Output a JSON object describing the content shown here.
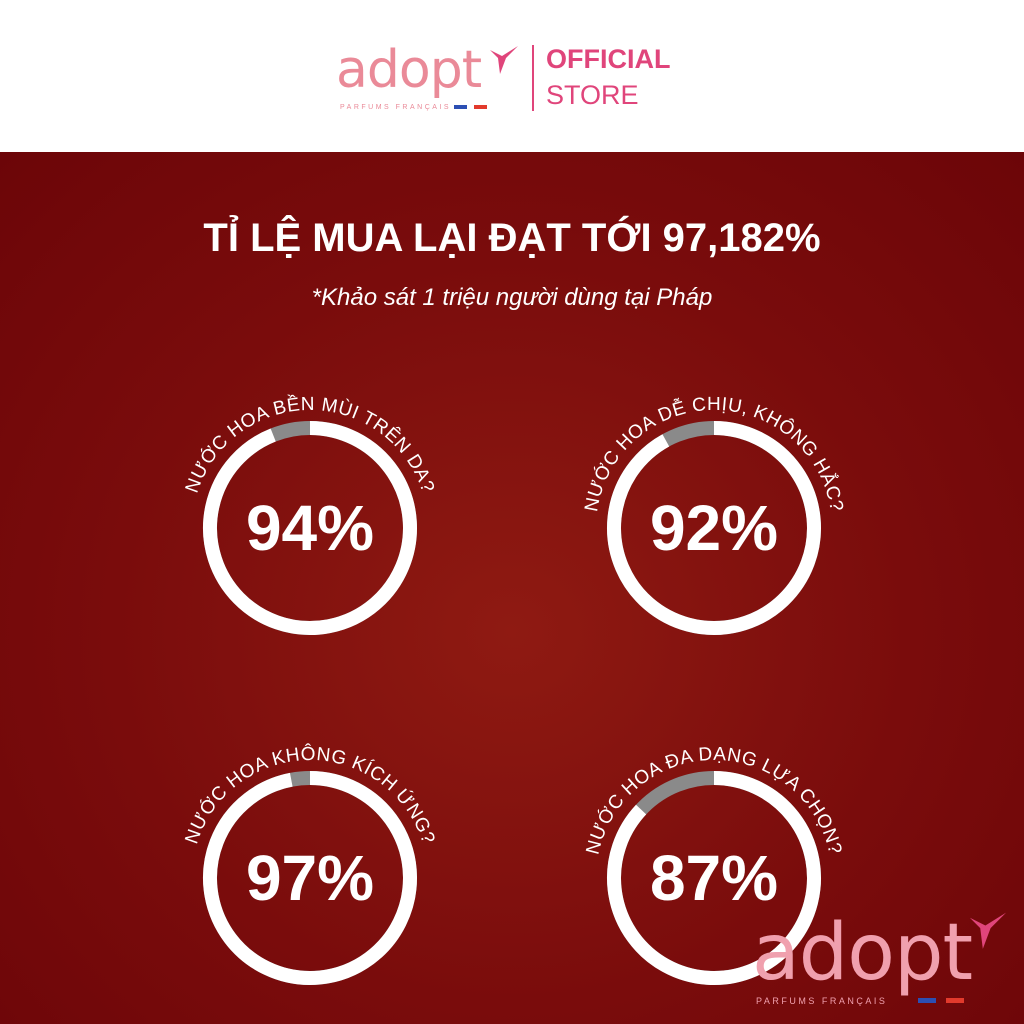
{
  "header": {
    "brand": "adopt",
    "brand_tagline": "PARFUMS FRANÇAIS",
    "official": "OFFICIAL",
    "store": "STORE"
  },
  "title": "TỈ LỆ MUA LẠI ĐẠT TỚI 97,182%",
  "subtitle": "*Khảo sát 1 triệu người dùng tại Pháp",
  "colors": {
    "ring": "#ffffff",
    "remainder": "#8a8a8a",
    "background": "#7a0c0c",
    "accent": "#e0457b"
  },
  "chart_data": {
    "type": "pie",
    "variant": "donut-gauge",
    "items": [
      {
        "label": "NƯỚC HOA BỀN MÙI TRÊN DA?",
        "value": 94,
        "display": "94%"
      },
      {
        "label": "NƯỚC HOA DỄ CHỊU, KHÔNG HẮC?",
        "value": 92,
        "display": "92%"
      },
      {
        "label": "NƯỚC HOA KHÔNG KÍCH ỨNG?",
        "value": 97,
        "display": "97%"
      },
      {
        "label": "NƯỚC HOA ĐA DẠNG LỰA CHỌN?",
        "value": 87,
        "display": "87%"
      }
    ]
  },
  "footer_logo": {
    "brand": "adopt",
    "brand_tagline": "PARFUMS FRANÇAIS"
  }
}
